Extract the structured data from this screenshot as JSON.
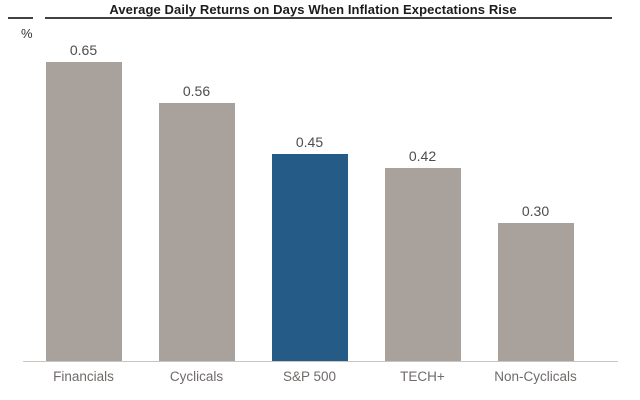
{
  "header": {
    "title": "Average Daily Returns on Days When Inflation Expectations Rise",
    "y_axis_unit": "%"
  },
  "colors": {
    "bar": "#a9a29c",
    "highlight": "#255c87",
    "title_text": "#1c1c1c",
    "title_rule": "#414141",
    "unit_label": "#333333",
    "value_label": "#4d4d4d",
    "category_label": "#6f6b69",
    "axis_line": "#c9c5c2"
  },
  "chart_data": {
    "type": "bar",
    "title": "Average Daily Returns on Days When Inflation Expectations Rise",
    "xlabel": "",
    "ylabel": "%",
    "categories": [
      "Financials",
      "Cyclicals",
      "S&P 500",
      "TECH+",
      "Non-Cyclicals"
    ],
    "values": [
      0.65,
      0.56,
      0.45,
      0.42,
      0.3
    ],
    "value_labels": [
      "0.65",
      "0.56",
      "0.45",
      "0.42",
      "0.30"
    ],
    "highlight_index": 2,
    "highlight_category": "S&P 500",
    "ylim": [
      0,
      0.7
    ],
    "grid": false,
    "legend": false,
    "y_axis_ticks_visible": false
  }
}
